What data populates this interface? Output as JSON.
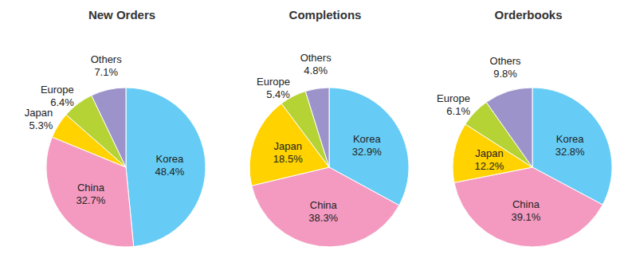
{
  "chart_data": [
    {
      "type": "pie",
      "title": "New Orders",
      "categories": [
        "Korea",
        "China",
        "Japan",
        "Europe",
        "Others"
      ],
      "values": [
        48.4,
        32.7,
        5.3,
        6.4,
        7.1
      ],
      "value_labels": [
        "48.4%",
        "32.7%",
        "5.3%",
        "6.4%",
        "7.1%"
      ],
      "colors": [
        "#66ccf5",
        "#f49ac1",
        "#ffd200",
        "#b5d334",
        "#9b93c9"
      ],
      "data_labels": true
    },
    {
      "type": "pie",
      "title": "Completions",
      "categories": [
        "Korea",
        "China",
        "Japan",
        "Europe",
        "Others"
      ],
      "values": [
        32.9,
        38.3,
        18.5,
        5.4,
        4.8
      ],
      "value_labels": [
        "32.9%",
        "38.3%",
        "18.5%",
        "5.4%",
        "4.8%"
      ],
      "colors": [
        "#66ccf5",
        "#f49ac1",
        "#ffd200",
        "#b5d334",
        "#9b93c9"
      ],
      "data_labels": true
    },
    {
      "type": "pie",
      "title": "Orderbooks",
      "categories": [
        "Korea",
        "China",
        "Japan",
        "Europe",
        "Others"
      ],
      "values": [
        32.8,
        39.1,
        12.2,
        6.1,
        9.8
      ],
      "value_labels": [
        "32.8%",
        "39.1%",
        "12.2%",
        "6.1%",
        "9.8%"
      ],
      "colors": [
        "#66ccf5",
        "#f49ac1",
        "#ffd200",
        "#b5d334",
        "#9b93c9"
      ],
      "data_labels": true
    }
  ]
}
